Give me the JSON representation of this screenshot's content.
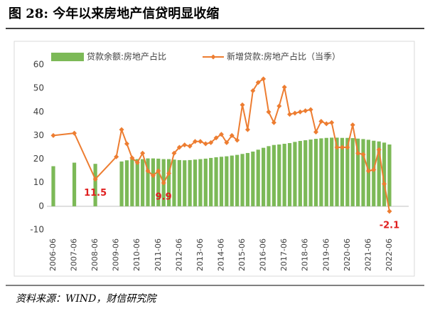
{
  "chart_data": {
    "type": "bar-line",
    "title": "图 28: 今年以来房地产信贷明显收缩",
    "source": "资料来源：WIND，财信研究院",
    "categories": [
      "2006-06",
      "2007-06",
      "2008-06",
      "2009-06",
      null,
      null,
      null,
      "2010-06",
      null,
      null,
      null,
      "2011-06",
      null,
      null,
      null,
      "2012-06",
      null,
      null,
      null,
      "2013-06",
      null,
      null,
      null,
      "2014-06",
      null,
      null,
      null,
      "2015-06",
      null,
      null,
      null,
      "2016-06",
      null,
      null,
      null,
      "2017-06",
      null,
      null,
      null,
      "2018-06",
      null,
      null,
      null,
      "2019-06",
      null,
      null,
      null,
      "2020-06",
      null,
      null,
      null,
      "2021-06",
      null,
      null,
      null,
      "2022-06"
    ],
    "series": [
      {
        "name": "贷款余额:房地产占比",
        "type": "bar",
        "color": "#7cb957",
        "values": [
          17,
          18.5,
          18,
          null,
          19,
          19.5,
          20,
          20,
          20,
          20.3,
          20.3,
          20.2,
          20,
          20,
          19.8,
          19.6,
          19.5,
          19.6,
          19.8,
          20,
          20.2,
          20.5,
          20.8,
          21,
          21.2,
          21.5,
          21.8,
          22.2,
          22.6,
          23.2,
          24,
          24.8,
          25.5,
          26,
          26.2,
          26.5,
          26.8,
          27.3,
          27.7,
          28,
          28.3,
          28.6,
          28.8,
          29,
          29.1,
          29.1,
          29,
          29,
          28.9,
          28.7,
          28.5,
          28.2,
          27.8,
          27.5,
          27,
          26.2
        ]
      },
      {
        "name": "新增贷款:房地产占比（当季）",
        "type": "line",
        "color": "#ed7d31",
        "values": [
          30,
          31,
          11.5,
          21,
          32.5,
          26.5,
          20.5,
          18.5,
          22.5,
          15,
          13,
          15,
          9.9,
          14,
          22.5,
          25,
          26,
          25.5,
          27.5,
          27.5,
          26.5,
          27,
          29,
          30.5,
          27,
          30,
          28,
          43,
          32.5,
          49,
          52.5,
          54,
          40,
          35.5,
          42.5,
          50.5,
          39,
          39.5,
          40,
          40.5,
          41,
          31.5,
          36,
          35,
          35.5,
          25,
          25,
          25,
          34.5,
          22.5,
          22,
          15,
          15.5,
          24,
          9.5,
          -2.1
        ],
        "value_labels": [
          null,
          null,
          "11.5",
          null,
          null,
          null,
          null,
          null,
          null,
          null,
          null,
          null,
          "9.9",
          null,
          null,
          null,
          null,
          null,
          null,
          null,
          null,
          null,
          null,
          null,
          null,
          null,
          null,
          null,
          null,
          null,
          null,
          null,
          null,
          null,
          null,
          null,
          null,
          null,
          null,
          null,
          null,
          null,
          null,
          null,
          null,
          null,
          null,
          null,
          null,
          null,
          null,
          null,
          null,
          null,
          null,
          "-2.1"
        ],
        "label_color": "#e02020"
      }
    ],
    "ylim": [
      -10,
      60
    ],
    "yticks": [
      -10,
      0,
      10,
      20,
      30,
      40,
      50,
      60
    ],
    "grid": false
  }
}
